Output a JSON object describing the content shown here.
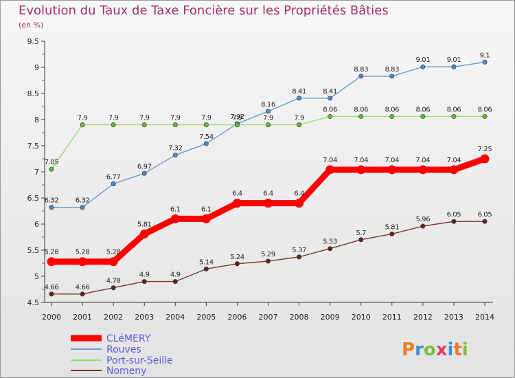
{
  "title": "Evolution du Taux de Taxe Foncière sur les Propriétés Bâties",
  "subtitle": "(en %)",
  "logo": {
    "letters": [
      "P",
      "r",
      "o",
      "x",
      "i",
      "t",
      "i"
    ],
    "colors": [
      "#e87c1e",
      "#3c8fd6",
      "#7cbf3a",
      "#e83c6a",
      "#3c8fd6",
      "#e87c1e",
      "#7cbf3a"
    ]
  },
  "chart_data": {
    "type": "line",
    "title": "Evolution du Taux de Taxe Foncière sur les Propriétés Bâties",
    "ylabel": "(en %)",
    "xlabel": "",
    "x": [
      "2000",
      "2001",
      "2002",
      "2003",
      "2004",
      "2005",
      "2006",
      "2007",
      "2008",
      "2009",
      "2010",
      "2011",
      "2012",
      "2013",
      "2014"
    ],
    "ylim": [
      4.5,
      9.5
    ],
    "yticks": [
      "4.5",
      "5",
      "5.5",
      "6",
      "6.5",
      "7",
      "7.5",
      "8",
      "8.5",
      "9",
      "9.5"
    ],
    "legend_position": "bottom-left",
    "grid": false,
    "series": [
      {
        "name": "CLéMERY",
        "color": "#ff0000",
        "thick": true,
        "values": [
          5.28,
          5.28,
          5.28,
          5.81,
          6.1,
          6.1,
          6.4,
          6.4,
          6.4,
          7.04,
          7.04,
          7.04,
          7.04,
          7.04,
          7.25
        ],
        "labels": [
          "5.28",
          "5.28",
          "5.28",
          "5.81",
          "6.1",
          "6.1",
          "6.4",
          "6.4",
          "6.4",
          "7.04",
          "7.04",
          "7.04",
          "7.04",
          "7.04",
          "7.25"
        ]
      },
      {
        "name": "Rouves",
        "color": "#6699cc",
        "dot": "#4a8ad0",
        "values": [
          6.32,
          6.32,
          6.77,
          6.97,
          7.32,
          7.54,
          7.92,
          8.16,
          8.41,
          8.41,
          8.83,
          8.83,
          9.01,
          9.01,
          9.1
        ],
        "labels": [
          "6.32",
          "6.32",
          "6.77",
          "6.97",
          "7.32",
          "7.54",
          "7.92",
          "8.16",
          "8.41",
          "8.41",
          "8.83",
          "8.83",
          "9.01",
          "9.01",
          "9.1"
        ]
      },
      {
        "name": "Port-sur-Seille",
        "color": "#99dd77",
        "dot": "#66bb33",
        "values": [
          7.05,
          7.9,
          7.9,
          7.9,
          7.9,
          7.9,
          7.9,
          7.9,
          7.9,
          8.06,
          8.06,
          8.06,
          8.06,
          8.06,
          8.06
        ],
        "labels": [
          "7.05",
          "7.9",
          "7.9",
          "7.9",
          "7.9",
          "7.9",
          "7.9",
          "7.9",
          "7.9",
          "8.06",
          "8.06",
          "8.06",
          "8.06",
          "8.06",
          "8.06"
        ]
      },
      {
        "name": "Nomeny",
        "color": "#773333",
        "dot": "#662222",
        "values": [
          4.66,
          4.66,
          4.78,
          4.9,
          4.9,
          5.14,
          5.24,
          5.29,
          5.37,
          5.53,
          5.7,
          5.81,
          5.96,
          6.05,
          6.05
        ],
        "labels": [
          "4.66",
          "4.66",
          "4.78",
          "4.9",
          "4.9",
          "5.14",
          "5.24",
          "5.29",
          "5.37",
          "5.53",
          "5.7",
          "5.81",
          "5.96",
          "6.05",
          "6.05"
        ]
      }
    ]
  }
}
